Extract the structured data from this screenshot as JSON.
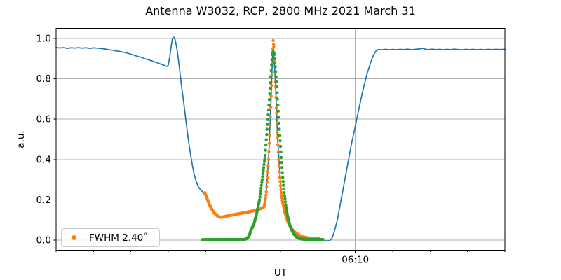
{
  "title": "Antenna W3032, RCP, 2800 MHz 2021 March 31",
  "legend": {
    "label": "FWHM 2.40",
    "degree_symbol": "°",
    "marker_color": "#ff7f0e"
  },
  "colors": {
    "line_blue": "#1f77b4",
    "dots_orange": "#ff7f0e",
    "dots_green": "#2ca02c",
    "grid": "#b0b0b0",
    "spine": "#000000",
    "text": "#000000",
    "background": "#ffffff"
  },
  "chart_data": {
    "type": "line",
    "title": "Antenna W3032, RCP, 2800 MHz 2021 March 31",
    "xlabel": "UT",
    "ylabel": "a.u.",
    "grid": true,
    "legend_position": "lower left",
    "x_axis": {
      "unit": "minutes from left edge",
      "range_minutes": [
        0,
        120
      ],
      "minor_tick_step_minutes": 10,
      "major_ticks": [
        {
          "minute": 80,
          "label": "06:10"
        }
      ]
    },
    "y_axis": {
      "limits": [
        -0.05,
        1.05
      ],
      "ticks": [
        0.0,
        0.2,
        0.4,
        0.6,
        0.8,
        1.0
      ],
      "tick_labels": [
        "0.0",
        "0.2",
        "0.4",
        "0.6",
        "0.8",
        "1.0"
      ]
    },
    "series": [
      {
        "name": "drift-scan-line",
        "render": "line",
        "color": "#1f77b4",
        "line_width": 1.7,
        "points": [
          [
            0,
            0.955
          ],
          [
            1,
            0.953
          ],
          [
            2,
            0.9545
          ],
          [
            3,
            0.951
          ],
          [
            4,
            0.954
          ],
          [
            5,
            0.9525
          ],
          [
            6,
            0.9545
          ],
          [
            7,
            0.952
          ],
          [
            8,
            0.954
          ],
          [
            9,
            0.951
          ],
          [
            10,
            0.9535
          ],
          [
            11,
            0.952
          ],
          [
            12,
            0.9505
          ],
          [
            13,
            0.948
          ],
          [
            14,
            0.9445
          ],
          [
            15,
            0.942
          ],
          [
            16,
            0.9385
          ],
          [
            17,
            0.936
          ],
          [
            18,
            0.932
          ],
          [
            19,
            0.928
          ],
          [
            20,
            0.922
          ],
          [
            21,
            0.916
          ],
          [
            22,
            0.91
          ],
          [
            23,
            0.905
          ],
          [
            24,
            0.898
          ],
          [
            25,
            0.893
          ],
          [
            26,
            0.886
          ],
          [
            27,
            0.88
          ],
          [
            28,
            0.873
          ],
          [
            29,
            0.866
          ],
          [
            29.6,
            0.861
          ],
          [
            30,
            0.868
          ],
          [
            30.4,
            0.91
          ],
          [
            30.8,
            0.965
          ],
          [
            31.1,
            1.0
          ],
          [
            31.45,
            1.007
          ],
          [
            31.8,
            0.995
          ],
          [
            32.2,
            0.96
          ],
          [
            32.6,
            0.91
          ],
          [
            33,
            0.85
          ],
          [
            33.5,
            0.77
          ],
          [
            34,
            0.7
          ],
          [
            34.5,
            0.625
          ],
          [
            35,
            0.55
          ],
          [
            35.5,
            0.48
          ],
          [
            36,
            0.42
          ],
          [
            36.5,
            0.365
          ],
          [
            37,
            0.32
          ],
          [
            37.5,
            0.29
          ],
          [
            38,
            0.265
          ],
          [
            38.6,
            0.25
          ],
          [
            39.2,
            0.24
          ],
          [
            40.3,
            0.21
          ],
          [
            41.3,
            0.165
          ],
          [
            42.3,
            0.135
          ],
          [
            43.3,
            0.118
          ],
          [
            43.8,
            0.114
          ],
          [
            46,
            0.121
          ],
          [
            48,
            0.128
          ],
          [
            50,
            0.135
          ],
          [
            52,
            0.142
          ],
          [
            54,
            0.152
          ],
          [
            55.6,
            0.165
          ],
          [
            56.2,
            0.24
          ],
          [
            56.8,
            0.4
          ],
          [
            57.4,
            0.66
          ],
          [
            57.8,
            0.88
          ],
          [
            58,
            0.945
          ],
          [
            58.3,
            0.9
          ],
          [
            58.7,
            0.76
          ],
          [
            59.2,
            0.51
          ],
          [
            59.6,
            0.4
          ],
          [
            60.1,
            0.25
          ],
          [
            61,
            0.15
          ],
          [
            62,
            0.09
          ],
          [
            63.2,
            0.052
          ],
          [
            64.5,
            0.03
          ],
          [
            66,
            0.016
          ],
          [
            68,
            0.008
          ],
          [
            69.5,
            0.003
          ],
          [
            71,
            0.0
          ],
          [
            72,
            -0.004
          ],
          [
            72.6,
            -0.005
          ],
          [
            73.2,
            -0.002
          ],
          [
            73.8,
            0.01
          ],
          [
            74.5,
            0.05
          ],
          [
            75.2,
            0.1
          ],
          [
            76,
            0.18
          ],
          [
            77,
            0.28
          ],
          [
            78,
            0.38
          ],
          [
            79,
            0.48
          ],
          [
            80,
            0.565
          ],
          [
            81,
            0.655
          ],
          [
            82,
            0.74
          ],
          [
            83,
            0.815
          ],
          [
            84,
            0.875
          ],
          [
            84.8,
            0.915
          ],
          [
            85.5,
            0.937
          ],
          [
            86.2,
            0.9455
          ],
          [
            87,
            0.944
          ],
          [
            88,
            0.9465
          ],
          [
            89,
            0.9445
          ],
          [
            90,
            0.946
          ],
          [
            91,
            0.9445
          ],
          [
            92,
            0.9465
          ],
          [
            93,
            0.945
          ],
          [
            94,
            0.947
          ],
          [
            95,
            0.9445
          ],
          [
            96,
            0.9465
          ],
          [
            97,
            0.948
          ],
          [
            98,
            0.951
          ],
          [
            98.7,
            0.947
          ],
          [
            99.5,
            0.9445
          ],
          [
            100.5,
            0.947
          ],
          [
            101.5,
            0.945
          ],
          [
            102.5,
            0.9465
          ],
          [
            103.5,
            0.9445
          ],
          [
            104.5,
            0.9465
          ],
          [
            105.5,
            0.945
          ],
          [
            106.5,
            0.947
          ],
          [
            107.5,
            0.9455
          ],
          [
            108.5,
            0.944
          ],
          [
            109.5,
            0.9465
          ],
          [
            110.5,
            0.945
          ],
          [
            111.5,
            0.9465
          ],
          [
            112.5,
            0.9445
          ],
          [
            113.5,
            0.946
          ],
          [
            114.5,
            0.9445
          ],
          [
            115.5,
            0.9465
          ],
          [
            116.5,
            0.945
          ],
          [
            117.5,
            0.9465
          ],
          [
            118.5,
            0.9455
          ],
          [
            119.3,
            0.946
          ],
          [
            120,
            0.9465
          ]
        ]
      },
      {
        "name": "selected-data-dots",
        "render": "dots",
        "color": "#ff7f0e",
        "dot_radius": 2.2,
        "sample_step": 0.1,
        "legend_label": "FWHM 2.40°",
        "anchors": [
          [
            39.8,
            0.235
          ],
          [
            40.3,
            0.21
          ],
          [
            40.8,
            0.185
          ],
          [
            41.3,
            0.165
          ],
          [
            41.8,
            0.148
          ],
          [
            42.3,
            0.135
          ],
          [
            42.8,
            0.125
          ],
          [
            43.3,
            0.118
          ],
          [
            43.8,
            0.114
          ],
          [
            44.5,
            0.1145
          ],
          [
            46,
            0.121
          ],
          [
            48,
            0.128
          ],
          [
            50,
            0.135
          ],
          [
            52,
            0.142
          ],
          [
            54,
            0.152
          ],
          [
            55,
            0.158
          ],
          [
            55.6,
            0.165
          ],
          [
            55.9,
            0.19
          ],
          [
            56.2,
            0.24
          ],
          [
            56.5,
            0.31
          ],
          [
            56.8,
            0.4
          ],
          [
            57.1,
            0.52
          ],
          [
            57.4,
            0.66
          ],
          [
            57.7,
            0.82
          ],
          [
            57.95,
            0.95
          ],
          [
            58.05,
            0.99
          ],
          [
            58.2,
            0.96
          ],
          [
            58.45,
            0.88
          ],
          [
            58.7,
            0.76
          ],
          [
            58.95,
            0.63
          ],
          [
            59.2,
            0.51
          ],
          [
            59.5,
            0.4
          ],
          [
            59.8,
            0.31
          ],
          [
            60.1,
            0.25
          ],
          [
            60.5,
            0.195
          ],
          [
            61,
            0.15
          ],
          [
            61.5,
            0.115
          ],
          [
            62,
            0.09
          ],
          [
            62.6,
            0.068
          ],
          [
            63.2,
            0.052
          ],
          [
            63.8,
            0.04
          ],
          [
            64.5,
            0.03
          ],
          [
            65.2,
            0.022
          ],
          [
            66,
            0.016
          ],
          [
            67,
            0.012
          ],
          [
            68,
            0.009
          ],
          [
            69.2,
            0.007
          ],
          [
            70.4,
            0.006
          ]
        ]
      },
      {
        "name": "gaussian-fit-dots",
        "render": "dots",
        "color": "#2ca02c",
        "dot_radius": 2.2,
        "sample_step": 0.1,
        "anchors": [
          [
            39.1,
            0.002
          ],
          [
            50.4,
            0.003
          ],
          [
            51.2,
            0.01
          ],
          [
            51.7,
            0.025
          ],
          [
            52.1,
            0.05
          ],
          [
            52.9,
            0.08
          ],
          [
            53.6,
            0.13
          ],
          [
            54.4,
            0.2
          ],
          [
            55.1,
            0.3
          ],
          [
            55.9,
            0.42
          ],
          [
            56.4,
            0.55
          ],
          [
            56.9,
            0.67
          ],
          [
            57.3,
            0.78
          ],
          [
            57.6,
            0.87
          ],
          [
            57.8,
            0.92
          ],
          [
            58.05,
            0.935
          ],
          [
            58.3,
            0.92
          ],
          [
            58.6,
            0.86
          ],
          [
            59,
            0.76
          ],
          [
            59.4,
            0.64
          ],
          [
            59.8,
            0.52
          ],
          [
            60.2,
            0.41
          ],
          [
            60.6,
            0.31
          ],
          [
            61,
            0.235
          ],
          [
            61.4,
            0.175
          ],
          [
            61.9,
            0.12
          ],
          [
            62.4,
            0.08
          ],
          [
            63,
            0.05
          ],
          [
            63.6,
            0.03
          ],
          [
            64.2,
            0.017
          ],
          [
            64.8,
            0.01
          ],
          [
            65.5,
            0.006
          ],
          [
            66.5,
            0.004
          ],
          [
            68,
            0.003
          ],
          [
            71.3,
            0.003
          ]
        ]
      }
    ]
  }
}
